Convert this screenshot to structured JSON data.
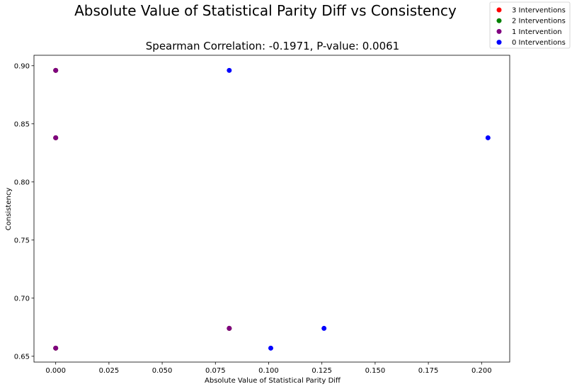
{
  "chart_data": {
    "type": "scatter",
    "title": "Absolute Value of Statistical Parity Diff vs Consistency",
    "subtitle": "Spearman Correlation: -0.1971, P-value: 0.0061",
    "xlabel": "Absolute Value of Statistical Parity Diff",
    "ylabel": "Consistency",
    "xlim": [
      -0.0102,
      0.2132
    ],
    "ylim": [
      0.645,
      0.909
    ],
    "xticks": [
      "0.000",
      "0.025",
      "0.050",
      "0.075",
      "0.100",
      "0.125",
      "0.150",
      "0.175",
      "0.200"
    ],
    "yticks": [
      "0.65",
      "0.70",
      "0.75",
      "0.80",
      "0.85",
      "0.90"
    ],
    "grid": false,
    "legend_position": "top-right",
    "series": [
      {
        "name": "3 Interventions",
        "color": "#ff0000",
        "points": [
          [
            0.0,
            0.896
          ],
          [
            0.0,
            0.838
          ],
          [
            0.0,
            0.657
          ],
          [
            0.0815,
            0.674
          ]
        ]
      },
      {
        "name": "2 Interventions",
        "color": "#008000",
        "points": [
          [
            0.0,
            0.896
          ],
          [
            0.0,
            0.838
          ],
          [
            0.0,
            0.657
          ],
          [
            0.0815,
            0.674
          ]
        ]
      },
      {
        "name": "1 Intervention",
        "color": "#800080",
        "points": [
          [
            0.0,
            0.896
          ],
          [
            0.0,
            0.838
          ],
          [
            0.0,
            0.657
          ],
          [
            0.0815,
            0.674
          ]
        ]
      },
      {
        "name": "0 Interventions",
        "color": "#0000ff",
        "points": [
          [
            0.0815,
            0.896
          ],
          [
            0.101,
            0.657
          ],
          [
            0.126,
            0.674
          ],
          [
            0.203,
            0.838
          ]
        ]
      }
    ]
  }
}
